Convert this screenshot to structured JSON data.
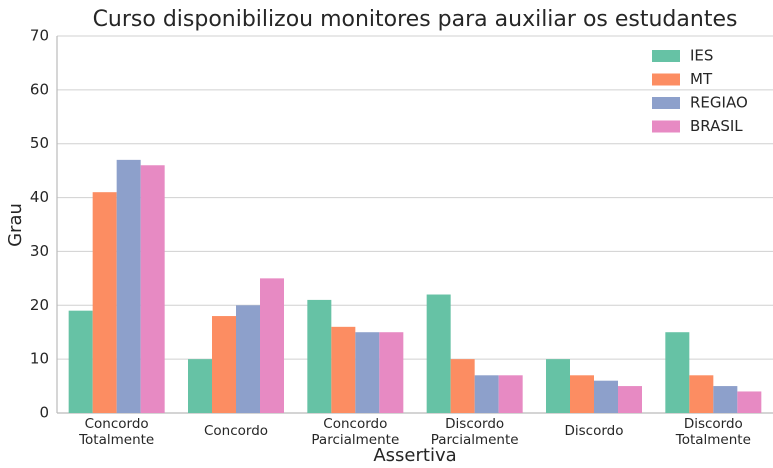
{
  "chart_data": {
    "type": "bar",
    "title": "Curso disponibilizou monitores para auxiliar os estudantes",
    "xlabel": "Assertiva",
    "ylabel": "Grau",
    "categories": [
      "Concordo Totalmente",
      "Concordo",
      "Concordo Parcialmente",
      "Discordo Parcialmente",
      "Discordo",
      "Discordo Totalmente"
    ],
    "series": [
      {
        "name": "IES",
        "color": "#66c2a5",
        "values": [
          19,
          10,
          21,
          22,
          10,
          15
        ]
      },
      {
        "name": "MT",
        "color": "#fc8d62",
        "values": [
          41,
          18,
          16,
          10,
          7,
          7
        ]
      },
      {
        "name": "REGIAO",
        "color": "#8da0cb",
        "values": [
          47,
          20,
          15,
          7,
          6,
          5
        ]
      },
      {
        "name": "BRASIL",
        "color": "#e78ac3",
        "values": [
          46,
          25,
          15,
          7,
          5,
          4
        ]
      }
    ],
    "ylim": [
      0,
      70
    ],
    "yticks": [
      0,
      10,
      20,
      30,
      40,
      50,
      60,
      70
    ],
    "grid": true,
    "legend": "upper right"
  }
}
